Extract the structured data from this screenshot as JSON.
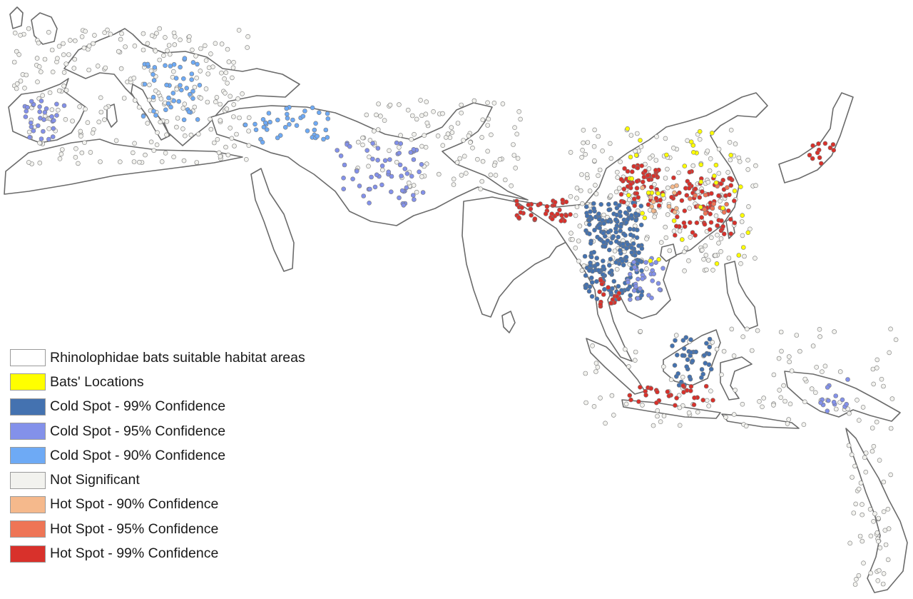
{
  "map": {
    "legend": [
      {
        "label": "Rhinolophidae bats suitable habitat areas",
        "color": "#ffffff",
        "key": "habitat"
      },
      {
        "label": "Bats' Locations",
        "color": "#ffff00",
        "key": "bats"
      },
      {
        "label": "Cold Spot - 99% Confidence",
        "color": "#4472b0",
        "key": "cold99"
      },
      {
        "label": "Cold Spot - 95% Confidence",
        "color": "#8391ea",
        "key": "cold95"
      },
      {
        "label": "Cold Spot - 90% Confidence",
        "color": "#6eaaf5",
        "key": "cold90"
      },
      {
        "label": "Not Significant",
        "color": "#f2f2ee",
        "key": "ns"
      },
      {
        "label": "Hot Spot - 90% Confidence",
        "color": "#f5b98c",
        "key": "hot90"
      },
      {
        "label": "Hot Spot - 95% Confidence",
        "color": "#ee7556",
        "key": "hot95"
      },
      {
        "label": "Hot Spot - 99% Confidence",
        "color": "#d8312b",
        "key": "hot99"
      }
    ]
  }
}
